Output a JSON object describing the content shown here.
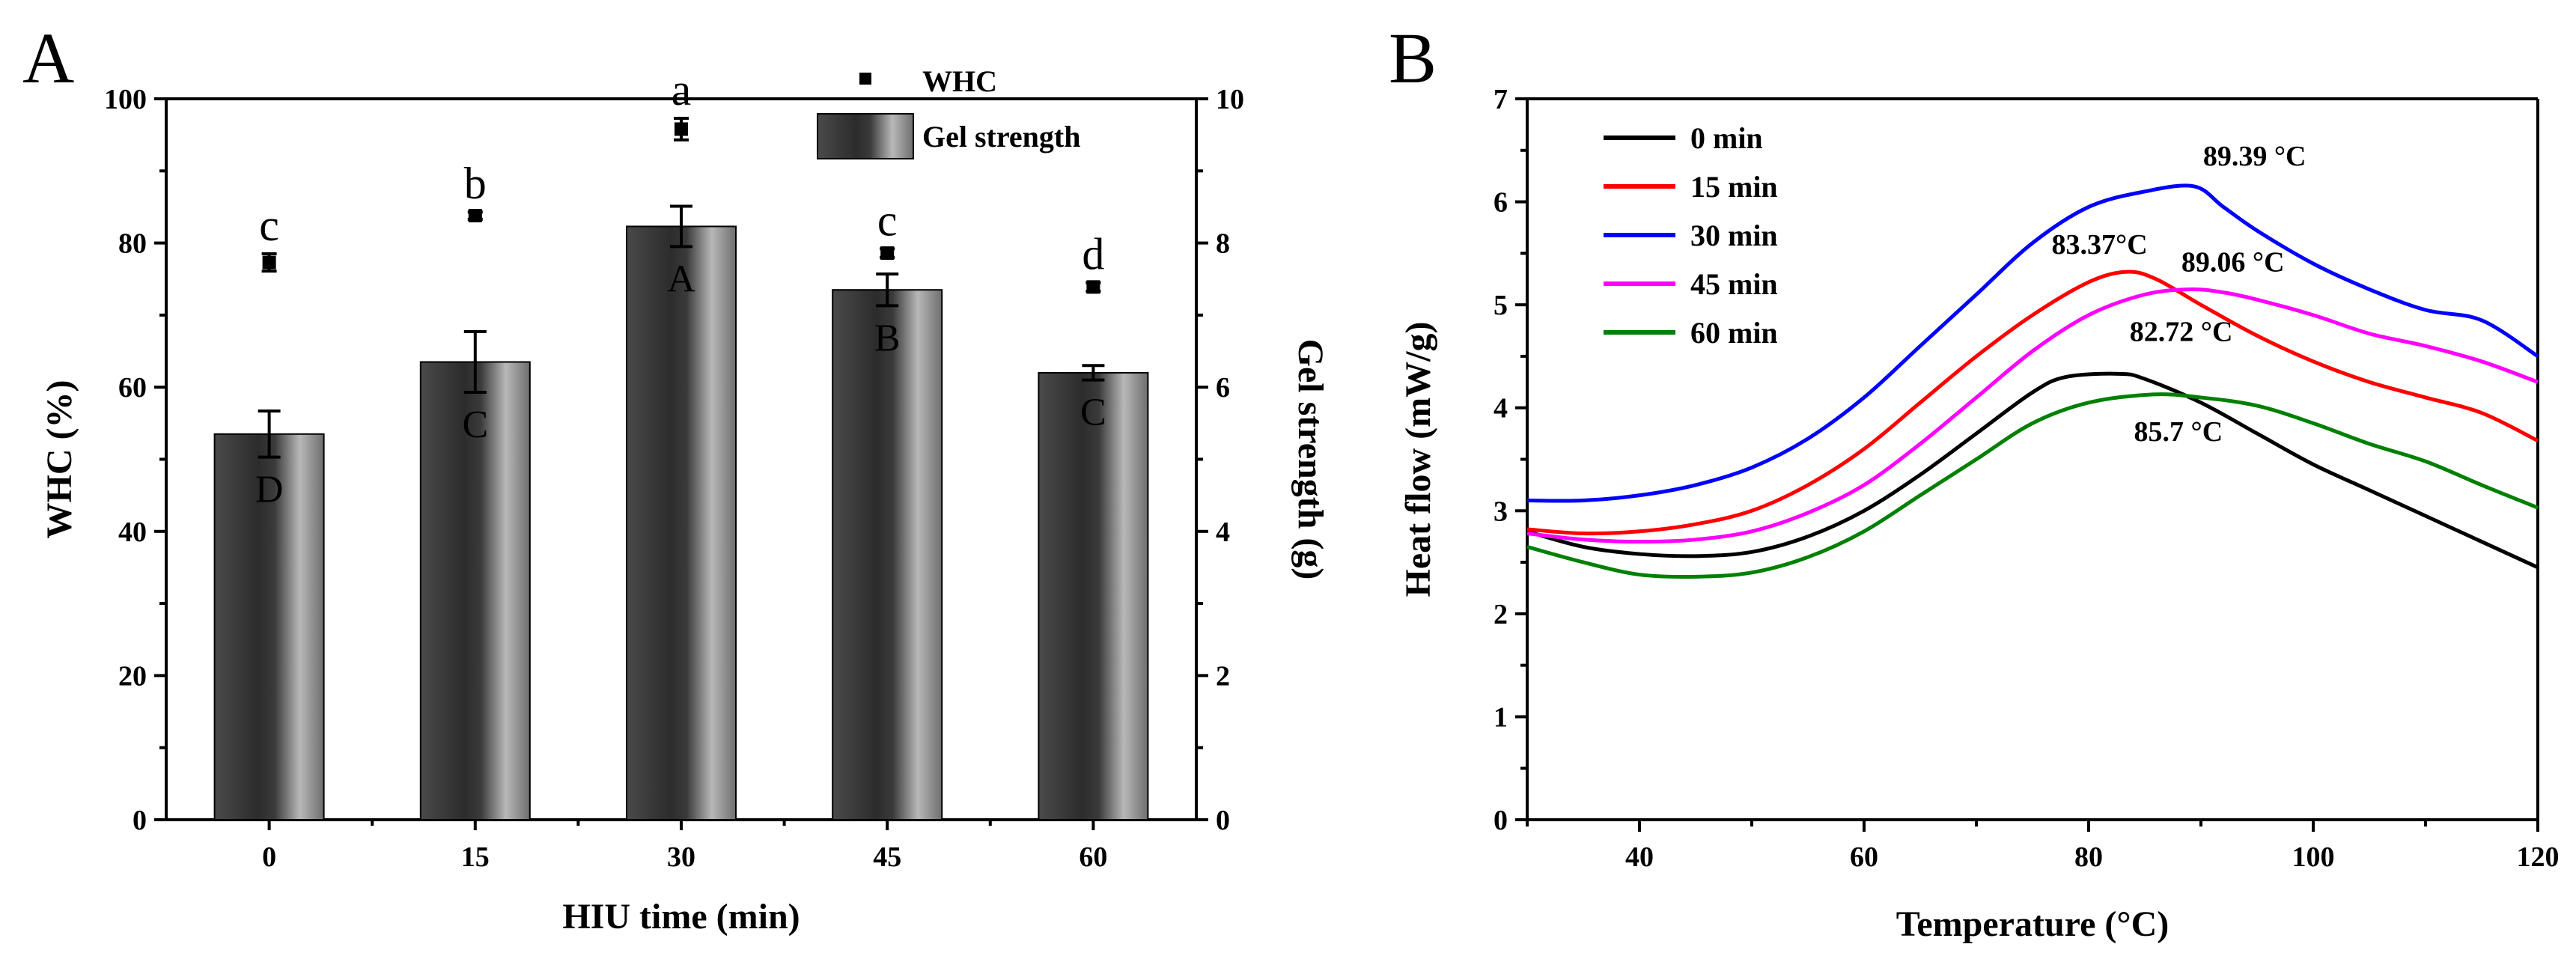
{
  "chart_data": [
    {
      "type": "bar",
      "panel_label": "A",
      "xlabel": "HIU time (min)",
      "ylabel": "WHC (%)",
      "y2label": "Gel strength (g)",
      "categories": [
        "0",
        "15",
        "30",
        "45",
        "60"
      ],
      "ylim": [
        0,
        100
      ],
      "y2lim": [
        0,
        10
      ],
      "yticks": [
        "0",
        "20",
        "40",
        "60",
        "80",
        "100"
      ],
      "y2ticks": [
        "0",
        "2",
        "4",
        "6",
        "8",
        "10"
      ],
      "legend": {
        "position": "top-right",
        "entries": [
          "WHC",
          "Gel strength"
        ]
      },
      "series": [
        {
          "name": "Gel strength",
          "kind": "bar",
          "axis": "right",
          "values": [
            5.35,
            6.35,
            8.23,
            7.35,
            6.2
          ],
          "errors": [
            0.32,
            0.42,
            0.28,
            0.22,
            0.1
          ],
          "letters": [
            "D",
            "C",
            "A",
            "B",
            "C"
          ]
        },
        {
          "name": "WHC",
          "kind": "point",
          "axis": "left",
          "values": [
            77.3,
            83.8,
            95.8,
            78.6,
            73.9
          ],
          "errors": [
            1.2,
            0.5,
            1.5,
            0.6,
            0.6
          ],
          "letters": [
            "c",
            "b",
            "a",
            "c",
            "d"
          ]
        }
      ]
    },
    {
      "type": "line",
      "panel_label": "B",
      "xlabel": "Temperature (°C)",
      "ylabel": "Heat flow (mW/g)",
      "xlim": [
        30,
        120
      ],
      "ylim": [
        0,
        7
      ],
      "xticks": [
        "40",
        "60",
        "80",
        "100",
        "120"
      ],
      "yticks": [
        "0",
        "1",
        "2",
        "3",
        "4",
        "5",
        "6",
        "7"
      ],
      "legend": {
        "position": "top-left",
        "entries": [
          "0 min",
          "15 min",
          "30 min",
          "45 min",
          "60 min"
        ]
      },
      "series": [
        {
          "name": "0 min",
          "color": "#000000",
          "x": [
            30,
            35,
            40,
            45,
            50,
            55,
            60,
            65,
            70,
            75,
            78,
            82.72,
            85,
            90,
            95,
            100,
            105,
            110,
            115,
            120
          ],
          "y": [
            2.8,
            2.65,
            2.58,
            2.56,
            2.6,
            2.75,
            3.0,
            3.35,
            3.75,
            4.15,
            4.3,
            4.33,
            4.28,
            4.05,
            3.75,
            3.45,
            3.2,
            2.95,
            2.7,
            2.45
          ]
        },
        {
          "name": "15 min",
          "color": "#ff0000",
          "x": [
            30,
            35,
            40,
            45,
            50,
            55,
            60,
            65,
            70,
            75,
            80,
            83.37,
            86,
            90,
            95,
            100,
            105,
            110,
            115,
            120
          ],
          "y": [
            2.82,
            2.78,
            2.8,
            2.87,
            3.0,
            3.25,
            3.6,
            4.05,
            4.5,
            4.9,
            5.22,
            5.32,
            5.25,
            5.0,
            4.7,
            4.45,
            4.25,
            4.1,
            3.95,
            3.68
          ]
        },
        {
          "name": "30 min",
          "color": "#0000ff",
          "x": [
            30,
            35,
            40,
            45,
            50,
            55,
            60,
            65,
            70,
            75,
            80,
            85,
            89.39,
            92,
            95,
            100,
            105,
            110,
            115,
            120
          ],
          "y": [
            3.1,
            3.1,
            3.15,
            3.25,
            3.42,
            3.7,
            4.1,
            4.6,
            5.1,
            5.6,
            5.95,
            6.1,
            6.15,
            5.95,
            5.72,
            5.4,
            5.15,
            4.95,
            4.85,
            4.5
          ]
        },
        {
          "name": "45 min",
          "color": "#ff00ff",
          "x": [
            30,
            35,
            40,
            45,
            50,
            55,
            60,
            65,
            70,
            75,
            80,
            85,
            89.06,
            92,
            95,
            100,
            105,
            110,
            115,
            120
          ],
          "y": [
            2.78,
            2.72,
            2.7,
            2.72,
            2.8,
            2.98,
            3.25,
            3.65,
            4.1,
            4.55,
            4.9,
            5.1,
            5.15,
            5.12,
            5.05,
            4.9,
            4.72,
            4.6,
            4.45,
            4.25
          ]
        },
        {
          "name": "60 min",
          "color": "#008000",
          "x": [
            30,
            35,
            40,
            45,
            50,
            55,
            60,
            65,
            70,
            75,
            80,
            85.7,
            90,
            95,
            100,
            105,
            110,
            115,
            120
          ],
          "y": [
            2.65,
            2.5,
            2.38,
            2.36,
            2.4,
            2.55,
            2.8,
            3.15,
            3.5,
            3.85,
            4.05,
            4.13,
            4.1,
            4.02,
            3.85,
            3.65,
            3.48,
            3.25,
            3.03
          ]
        }
      ],
      "annotations": [
        {
          "text": "89.39 °C",
          "x": 89.39,
          "y": 6.15,
          "series": "30 min"
        },
        {
          "text": "83.37°C",
          "x": 83.37,
          "y": 5.32,
          "series": "15 min"
        },
        {
          "text": "89.06 °C",
          "x": 89.06,
          "y": 5.15,
          "series": "45 min"
        },
        {
          "text": "82.72 °C",
          "x": 82.72,
          "y": 4.33,
          "series": "0 min"
        },
        {
          "text": "85.7 °C",
          "x": 85.7,
          "y": 4.13,
          "series": "60 min"
        }
      ]
    }
  ]
}
